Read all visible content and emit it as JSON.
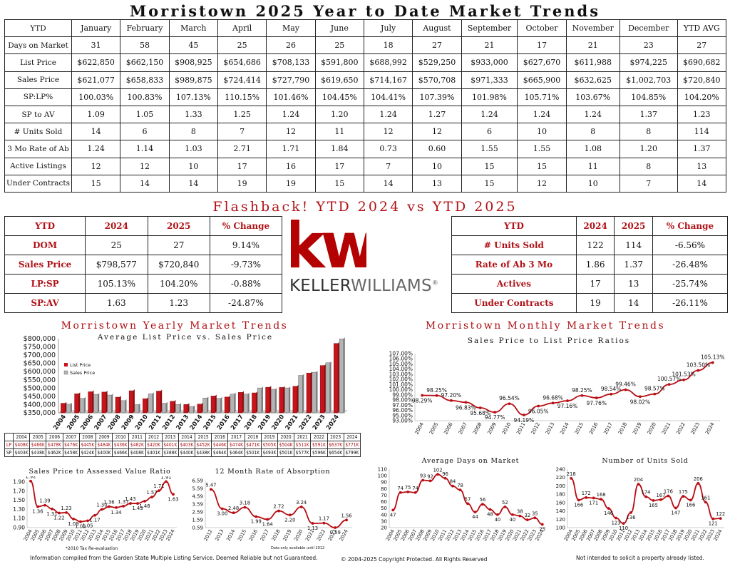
{
  "page": {
    "title": "Morristown 2025 Year to Date Market Trends",
    "flashback_title": "Flashback!  YTD 2024 vs YTD 2025",
    "yearly_title": "Morristown Yearly Market Trends",
    "monthly_title": "Morristown Monthly Market Trends",
    "footer_left": "Information compiled from the Garden State Multiple Listing Service.  Deemed Reliable but not Guaranteed.",
    "footer_center": "© 2004-2025 Copyright Protected.  All Rights Reserved",
    "footer_right": "Not intended to solicit a property already listed.",
    "note_reevaluation": "*2010 Tax Re-evaluation",
    "note_data": "Data only available until 2012"
  },
  "logo": {
    "mark": "kw",
    "brand_left": "KELLER",
    "brand_right": "WILLIAMS",
    "tm": "®"
  },
  "colors": {
    "accent": "#b01217",
    "logo_red": "#b40101",
    "gray_bar": "#a8a8a8"
  },
  "main_table": {
    "header": [
      "YTD",
      "January",
      "February",
      "March",
      "April",
      "May",
      "June",
      "July",
      "August",
      "September",
      "October",
      "November",
      "December",
      "YTD AVG"
    ],
    "rows": [
      [
        "Days on Market",
        "31",
        "58",
        "45",
        "25",
        "26",
        "25",
        "18",
        "27",
        "21",
        "17",
        "21",
        "23",
        "27"
      ],
      [
        "List Price",
        "$622,850",
        "$662,150",
        "$908,925",
        "$654,686",
        "$708,133",
        "$591,800",
        "$688,992",
        "$529,250",
        "$933,000",
        "$627,670",
        "$611,988",
        "$974,225",
        "$690,682"
      ],
      [
        "Sales Price",
        "$621,077",
        "$658,833",
        "$989,875",
        "$724,414",
        "$727,790",
        "$619,650",
        "$714,167",
        "$570,708",
        "$971,333",
        "$665,900",
        "$632,625",
        "$1,002,703",
        "$720,840"
      ],
      [
        "SP:LP%",
        "100.03%",
        "100.83%",
        "107.13%",
        "110.15%",
        "101.46%",
        "104.45%",
        "104.41%",
        "107.39%",
        "101.98%",
        "105.71%",
        "103.67%",
        "104.85%",
        "104.20%"
      ],
      [
        "SP to AV",
        "1.09",
        "1.05",
        "1.33",
        "1.25",
        "1.24",
        "1.20",
        "1.24",
        "1.27",
        "1.24",
        "1.24",
        "1.24",
        "1.37",
        "1.23"
      ],
      [
        "# Units Sold",
        "14",
        "6",
        "8",
        "7",
        "12",
        "11",
        "12",
        "12",
        "6",
        "10",
        "8",
        "8",
        "114"
      ],
      [
        "3 Mo Rate of Ab",
        "1.24",
        "1.14",
        "1.03",
        "2.71",
        "1.71",
        "1.84",
        "0.73",
        "0.60",
        "1.55",
        "1.55",
        "1.08",
        "1.20",
        "1.37"
      ],
      [
        "Active Listings",
        "12",
        "12",
        "10",
        "17",
        "16",
        "17",
        "7",
        "10",
        "15",
        "15",
        "11",
        "8",
        "13"
      ],
      [
        "Under Contracts",
        "15",
        "14",
        "14",
        "19",
        "19",
        "15",
        "14",
        "13",
        "15",
        "12",
        "10",
        "7",
        "14"
      ]
    ]
  },
  "compare_left": {
    "header": [
      "YTD",
      "2024",
      "2025",
      "% Change"
    ],
    "rows": [
      [
        "DOM",
        "25",
        "27",
        "9.14%"
      ],
      [
        "Sales Price",
        "$798,577",
        "$720,840",
        "-9.73%"
      ],
      [
        "LP:SP",
        "105.13%",
        "104.20%",
        "-0.88%"
      ],
      [
        "SP:AV",
        "1.63",
        "1.23",
        "-24.87%"
      ]
    ]
  },
  "compare_right": {
    "header": [
      "YTD",
      "2024",
      "2025",
      "% Change"
    ],
    "rows": [
      [
        "# Units Sold",
        "122",
        "114",
        "-6.56%"
      ],
      [
        "Rate of Ab 3 Mo",
        "1.86",
        "1.37",
        "-26.48%"
      ],
      [
        "Actives",
        "17",
        "13",
        "-25.74%"
      ],
      [
        "Under Contracts",
        "19",
        "14",
        "-26.11%"
      ]
    ]
  },
  "lp_sp_table": {
    "years": [
      "2004",
      "2005",
      "2006",
      "2007",
      "2008",
      "2009",
      "2010",
      "2011",
      "2012",
      "2013",
      "2014",
      "2015",
      "2016",
      "2017",
      "2018",
      "2019",
      "2020",
      "2021",
      "2022",
      "2023",
      "2024"
    ],
    "lp_label": "LP",
    "sp_label": "SP",
    "lp": [
      "$408K",
      "$466K",
      "$478K",
      "$476K",
      "$445K",
      "$484K",
      "$436K",
      "$482K",
      "$420K",
      "$401K",
      "$403K",
      "$452K",
      "$446K",
      "$474K",
      "$471K",
      "$505K",
      "$504K",
      "$511K",
      "$591K",
      "$637K",
      "$771K"
    ],
    "sp": [
      "$403K",
      "$438K",
      "$462K",
      "$458K",
      "$424K",
      "$400K",
      "$466K",
      "$408K",
      "$401K",
      "$388K",
      "$440K",
      "$438K",
      "$464K",
      "$464K",
      "$501K",
      "$493K",
      "$501K",
      "$577K",
      "$596K",
      "$654K",
      "$799K"
    ]
  },
  "chart_data": [
    {
      "id": "avg_list_vs_sales",
      "type": "bar",
      "title": "Average List Price vs. Sales Price",
      "categories": [
        "2004",
        "2005",
        "2006",
        "2007",
        "2008",
        "2009",
        "2010",
        "2011",
        "2012",
        "2013",
        "2014",
        "2015",
        "2016",
        "2017",
        "2018",
        "2019",
        "2020",
        "2021",
        "2022",
        "2023",
        "2024"
      ],
      "series": [
        {
          "name": "List Price",
          "values": [
            408,
            466,
            478,
            476,
            445,
            484,
            436,
            482,
            420,
            401,
            403,
            452,
            446,
            474,
            471,
            505,
            504,
            511,
            591,
            637,
            771
          ]
        },
        {
          "name": "Sales Price",
          "values": [
            403,
            438,
            462,
            458,
            424,
            400,
            466,
            408,
            401,
            388,
            440,
            438,
            464,
            464,
            501,
            493,
            501,
            577,
            596,
            654,
            799
          ]
        }
      ],
      "value_unit": "thousands USD",
      "ylim": [
        350000,
        800000
      ],
      "yticks": [
        "$350,000",
        "$400,000",
        "$450,000",
        "$500,000",
        "$550,000",
        "$600,000",
        "$650,000",
        "$700,000",
        "$750,000",
        "$800,000"
      ],
      "legend": "top-left"
    },
    {
      "id": "sp_lp_ratio",
      "type": "line",
      "title": "Sales Price to List Price Ratios",
      "categories": [
        "2004",
        "2005",
        "2006",
        "2007",
        "2008",
        "2009",
        "2010",
        "2011",
        "2012",
        "2013",
        "2014",
        "2015",
        "2016",
        "2017",
        "2018",
        "2019",
        "2020",
        "2021",
        "2022",
        "2023",
        "2024"
      ],
      "values": [
        98.29,
        98.25,
        97.2,
        96.83,
        95.68,
        94.77,
        96.54,
        94.19,
        96.05,
        96.68,
        97.16,
        98.25,
        97.76,
        98.54,
        99.46,
        98.02,
        98.57,
        100.57,
        101.53,
        103.5,
        105.13
      ],
      "labels": [
        "98.29%",
        "98.25%",
        "97.20%",
        "96.83%",
        "95.68%",
        "94.77%",
        "96.54%",
        "94.19%",
        "96.05%",
        "96.68%",
        "97.16%",
        "98.25%",
        "97.76%",
        "98.54%",
        "99.46%",
        "98.02%",
        "98.57%",
        "100.57%",
        "101.53%",
        "103.50%",
        "105.13%"
      ],
      "ylim": [
        93,
        107
      ],
      "yticks": [
        "93.00%",
        "95.00%",
        "96.00%",
        "97.00%",
        "98.00%",
        "99.00%",
        "100.00%",
        "101.00%",
        "102.00%",
        "103.00%",
        "104.00%",
        "105.00%",
        "106.00%",
        "107.00%"
      ]
    },
    {
      "id": "sp_to_av",
      "type": "line",
      "title": "Sales Price to Assessed Value Ratio",
      "categories": [
        "2004",
        "2005",
        "2006",
        "2007",
        "2008",
        "2009",
        "2010",
        "2011",
        "2012",
        "2013",
        "2014",
        "2015",
        "2016",
        "2017",
        "2018",
        "2019",
        "2020",
        "2021",
        "2022",
        "2023",
        "2024"
      ],
      "values": [
        1.92,
        1.36,
        1.39,
        1.31,
        1.22,
        1.23,
        1.09,
        1.03,
        1.05,
        1.17,
        1.3,
        1.36,
        1.34,
        1.37,
        1.43,
        1.43,
        1.48,
        1.57,
        1.71,
        1.91,
        1.63
      ],
      "labels": [
        "1.92",
        "1.36",
        "1.39",
        "1.31",
        "1.22",
        "1.23",
        "1.09",
        "1.03",
        "1.05",
        "1.17",
        "1.30",
        "1.36",
        "1.34",
        "1.37",
        "1.43",
        "1.43",
        "1.48",
        "1.57",
        "1.71",
        "1.91",
        "1.63"
      ],
      "ylim": [
        0.9,
        1.9
      ],
      "yticks": [
        "0.90",
        "1.10",
        "1.30",
        "1.50",
        "1.70",
        "1.90"
      ]
    },
    {
      "id": "rate_of_absorption",
      "type": "line",
      "title": "12 Month Rate of Absorption",
      "categories": [
        "2012",
        "2013",
        "2014",
        "2015",
        "2016",
        "2017",
        "2018",
        "2019",
        "2020",
        "2021",
        "2022",
        "2023",
        "2024"
      ],
      "values": [
        5.47,
        3.0,
        2.48,
        3.18,
        1.99,
        1.64,
        2.72,
        2.2,
        3.24,
        1.13,
        1.17,
        0.59,
        1.56
      ],
      "labels": [
        "5.47",
        "3.00",
        "2.48",
        "3.18",
        "1.99",
        "1.64",
        "2.72",
        "2.20",
        "3.24",
        "1.13",
        "1.17",
        "0.59",
        "1.56"
      ],
      "ylim": [
        0.59,
        6.59
      ],
      "yticks": [
        "0.59",
        "1.59",
        "2.59",
        "3.59",
        "4.59",
        "5.59",
        "6.59"
      ]
    },
    {
      "id": "avg_dom",
      "type": "line",
      "title": "Average Days on Market",
      "categories": [
        "2004",
        "2005",
        "2006",
        "2007",
        "2008",
        "2009",
        "2010",
        "2011",
        "2012",
        "2013",
        "2014",
        "2015",
        "2016",
        "2017",
        "2018",
        "2019",
        "2020",
        "2021",
        "2022",
        "2023",
        "2024"
      ],
      "values": [
        47,
        74,
        75,
        74,
        93,
        92,
        102,
        96,
        84,
        78,
        57,
        44,
        56,
        48,
        40,
        52,
        40,
        38,
        32,
        35,
        25
      ],
      "labels": [
        "47",
        "74",
        "75",
        "74",
        "93",
        "92",
        "102",
        "96",
        "84",
        "78",
        "57",
        "44",
        "56",
        "48",
        "40",
        "52",
        "40",
        "38",
        "32",
        "35",
        "25"
      ],
      "ylim": [
        20,
        110
      ],
      "yticks": [
        "20",
        "30",
        "40",
        "50",
        "60",
        "70",
        "80",
        "90",
        "100",
        "110"
      ]
    },
    {
      "id": "units_sold",
      "type": "line",
      "title": "Number of Units Sold",
      "categories": [
        "2004",
        "2005",
        "2006",
        "2007",
        "2008",
        "2009",
        "2010",
        "2011",
        "2012",
        "2013",
        "2014",
        "2015",
        "2016",
        "2017",
        "2018",
        "2019",
        "2020",
        "2021",
        "2022",
        "2023",
        "2024"
      ],
      "values": [
        218,
        166,
        172,
        171,
        168,
        146,
        123,
        110,
        136,
        204,
        174,
        165,
        167,
        176,
        147,
        175,
        166,
        206,
        161,
        121,
        122
      ],
      "labels": [
        "218",
        "166",
        "172",
        "171",
        "168",
        "146",
        "123",
        "110",
        "136",
        "204",
        "174",
        "165",
        "167",
        "176",
        "147",
        "175",
        "166",
        "206",
        "161",
        "121",
        "122"
      ],
      "ylim": [
        100,
        240
      ],
      "yticks": [
        "100",
        "120",
        "140",
        "160",
        "180",
        "200",
        "220",
        "240"
      ]
    }
  ]
}
